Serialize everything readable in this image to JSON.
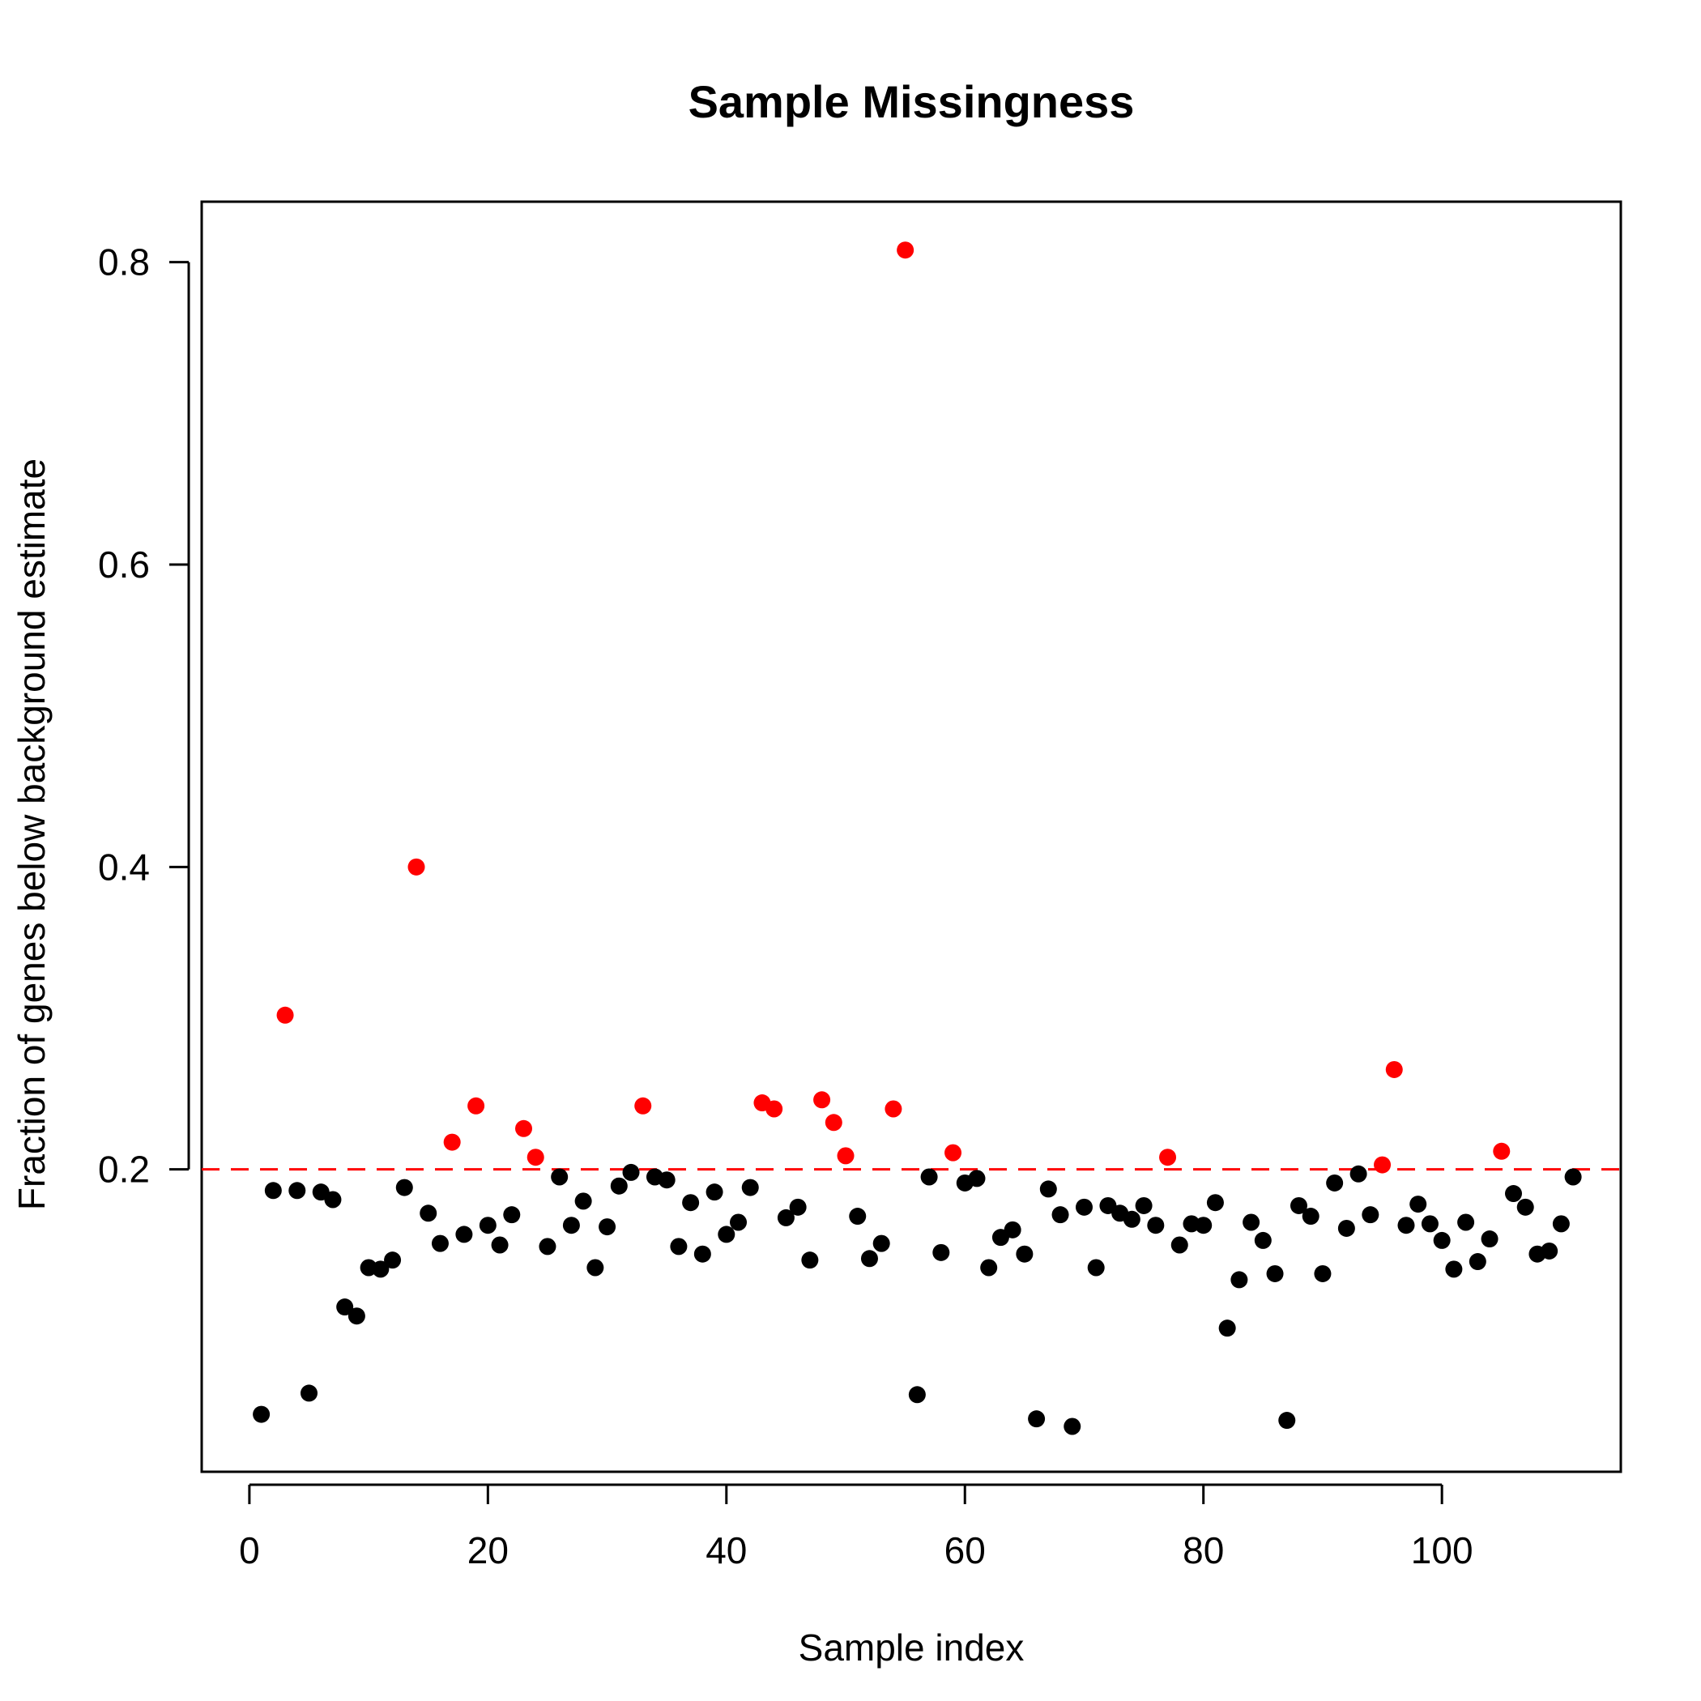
{
  "chart_data": {
    "type": "scatter",
    "title": "Sample Missingness",
    "xlabel": "Sample index",
    "ylabel": "Fraction of genes below background estimate",
    "xlim": [
      -4,
      115
    ],
    "ylim": [
      0.0,
      0.84
    ],
    "xticks": [
      0,
      20,
      40,
      60,
      80,
      100
    ],
    "yticks": [
      0.2,
      0.4,
      0.6,
      0.8
    ],
    "xtick_labels": [
      "0",
      "20",
      "40",
      "60",
      "80",
      "100"
    ],
    "ytick_labels": [
      "0.2",
      "0.4",
      "0.6",
      "0.8"
    ],
    "threshold": 0.2,
    "threshold_color": "#ff0000",
    "below_color": "#000000",
    "above_color": "#ff0000",
    "grid": false,
    "x": [
      1,
      2,
      3,
      4,
      5,
      6,
      7,
      8,
      9,
      10,
      11,
      12,
      13,
      14,
      15,
      16,
      17,
      18,
      19,
      20,
      21,
      22,
      23,
      24,
      25,
      26,
      27,
      28,
      29,
      30,
      31,
      32,
      33,
      34,
      35,
      36,
      37,
      38,
      39,
      40,
      41,
      42,
      43,
      44,
      45,
      46,
      47,
      48,
      49,
      50,
      51,
      52,
      53,
      54,
      55,
      56,
      57,
      58,
      59,
      60,
      61,
      62,
      63,
      64,
      65,
      66,
      67,
      68,
      69,
      70,
      71,
      72,
      73,
      74,
      75,
      76,
      77,
      78,
      79,
      80,
      81,
      82,
      83,
      84,
      85,
      86,
      87,
      88,
      89,
      90,
      91,
      92,
      93,
      94,
      95,
      96,
      97,
      98,
      99,
      100,
      101,
      102,
      103,
      104,
      105,
      106,
      107,
      108,
      109,
      110,
      111
    ],
    "y": [
      0.038,
      0.186,
      0.302,
      0.186,
      0.052,
      0.185,
      0.18,
      0.109,
      0.103,
      0.135,
      0.134,
      0.14,
      0.188,
      0.4,
      0.171,
      0.151,
      0.218,
      0.157,
      0.242,
      0.163,
      0.15,
      0.17,
      0.227,
      0.208,
      0.149,
      0.195,
      0.163,
      0.179,
      0.135,
      0.162,
      0.189,
      0.198,
      0.242,
      0.195,
      0.193,
      0.149,
      0.178,
      0.144,
      0.185,
      0.157,
      0.165,
      0.188,
      0.244,
      0.24,
      0.168,
      0.175,
      0.14,
      0.246,
      0.231,
      0.209,
      0.169,
      0.141,
      0.151,
      0.24,
      0.808,
      0.051,
      0.195,
      0.145,
      0.211,
      0.191,
      0.194,
      0.135,
      0.155,
      0.16,
      0.144,
      0.035,
      0.187,
      0.17,
      0.03,
      0.175,
      0.135,
      0.176,
      0.171,
      0.167,
      0.176,
      0.163,
      0.208,
      0.15,
      0.164,
      0.163,
      0.178,
      0.095,
      0.127,
      0.165,
      0.153,
      0.131,
      0.034,
      0.176,
      0.169,
      0.131,
      0.191,
      0.161,
      0.197,
      0.17,
      0.203,
      0.266,
      0.163,
      0.177,
      0.164,
      0.153,
      0.134,
      0.165,
      0.139,
      0.154,
      0.212,
      0.184,
      0.175,
      0.144,
      0.146,
      0.164,
      0.195
    ]
  }
}
